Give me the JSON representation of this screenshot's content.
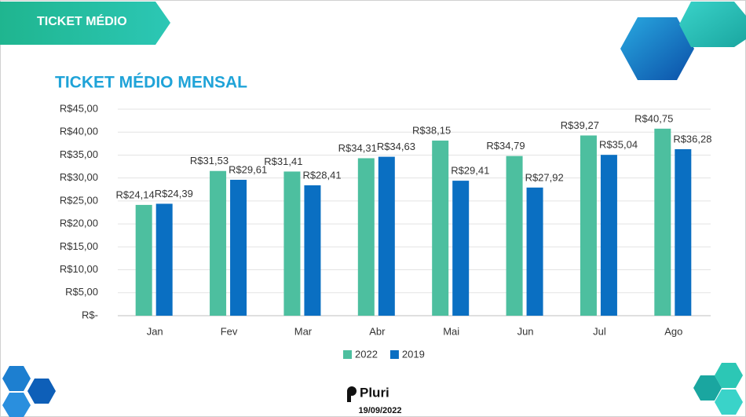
{
  "header": {
    "title": "TICKET MÉDIO"
  },
  "chart_data": {
    "type": "bar",
    "title": "TICKET MÉDIO MENSAL",
    "categories": [
      "Jan",
      "Fev",
      "Mar",
      "Abr",
      "Mai",
      "Jun",
      "Jul",
      "Ago"
    ],
    "series": [
      {
        "name": "2022",
        "color": "#4dbf9f",
        "values": [
          24.14,
          31.53,
          31.41,
          34.31,
          38.15,
          34.79,
          39.27,
          40.75
        ],
        "value_labels": [
          "R$24,14",
          "R$31,53",
          "R$31,41",
          "R$34,31",
          "R$38,15",
          "R$34,79",
          "R$39,27",
          "R$40,75"
        ]
      },
      {
        "name": "2019",
        "color": "#0a6fc2",
        "values": [
          24.39,
          29.61,
          28.41,
          34.63,
          29.41,
          27.92,
          35.04,
          36.28
        ],
        "value_labels": [
          "R$24,39",
          "R$29,61",
          "R$28,41",
          "R$34,63",
          "R$29,41",
          "R$27,92",
          "R$35,04",
          "R$36,28"
        ]
      }
    ],
    "ylim": [
      0,
      45
    ],
    "yticks": [
      {
        "value": 0,
        "label": "R$-"
      },
      {
        "value": 5,
        "label": "R$5,00"
      },
      {
        "value": 10,
        "label": "R$10,00"
      },
      {
        "value": 15,
        "label": "R$15,00"
      },
      {
        "value": 20,
        "label": "R$20,00"
      },
      {
        "value": 25,
        "label": "R$25,00"
      },
      {
        "value": 30,
        "label": "R$30,00"
      },
      {
        "value": 35,
        "label": "R$35,00"
      },
      {
        "value": 40,
        "label": "R$40,00"
      },
      {
        "value": 45,
        "label": "R$45,00"
      }
    ],
    "grid": true,
    "legend": "bottom"
  },
  "footer": {
    "brand": "Pluri",
    "date": "19/09/2022"
  }
}
